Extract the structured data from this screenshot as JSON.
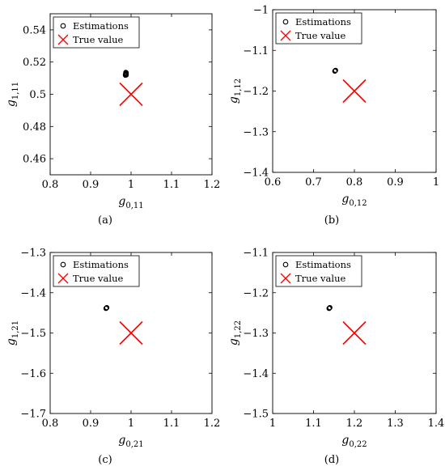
{
  "chart_data": [
    {
      "type": "scatter",
      "caption": "(a)",
      "xlabel": "g",
      "xlabel_sub": "0,11",
      "ylabel": "g",
      "ylabel_sub": "1,11",
      "xlim": [
        0.8,
        1.2
      ],
      "ylim": [
        0.45,
        0.55
      ],
      "xticks": [
        0.8,
        0.9,
        1.0,
        1.1,
        1.2
      ],
      "xtick_labels": [
        "0.8",
        "0.9",
        "1",
        "1.1",
        "1.2"
      ],
      "yticks": [
        0.46,
        0.48,
        0.5,
        0.52,
        0.54
      ],
      "ytick_labels": [
        "0.46",
        "0.48",
        "0.5",
        "0.52",
        "0.54"
      ],
      "legend": [
        "Estimations",
        "True value"
      ],
      "legend_position": "top-left",
      "grid": false,
      "series": [
        {
          "name": "Estimations",
          "marker": "circle-open",
          "color": "#000000",
          "x": [
            0.986,
            0.987,
            0.988,
            0.987,
            0.988,
            0.986,
            0.987,
            0.988
          ],
          "y": [
            0.5118,
            0.5122,
            0.5126,
            0.513,
            0.5134,
            0.5124,
            0.5136,
            0.512
          ]
        },
        {
          "name": "True value",
          "marker": "x",
          "color": "#ff0000",
          "x": [
            1.0
          ],
          "y": [
            0.5
          ]
        }
      ]
    },
    {
      "type": "scatter",
      "caption": "(b)",
      "xlabel": "g",
      "xlabel_sub": "0,12",
      "ylabel": "g",
      "ylabel_sub": "1,12",
      "xlim": [
        0.6,
        1.0
      ],
      "ylim": [
        -1.4,
        -1.0
      ],
      "xticks": [
        0.6,
        0.7,
        0.8,
        0.9,
        1.0
      ],
      "xtick_labels": [
        "0.6",
        "0.7",
        "0.8",
        "0.9",
        "1"
      ],
      "yticks": [
        -1.4,
        -1.3,
        -1.2,
        -1.1,
        -1.0
      ],
      "ytick_labels": [
        "−1.4",
        "−1.3",
        "−1.2",
        "−1.1",
        "−1"
      ],
      "legend": [
        "Estimations",
        "True value"
      ],
      "legend_position": "top-left",
      "grid": false,
      "series": [
        {
          "name": "Estimations",
          "marker": "circle-open",
          "color": "#000000",
          "x": [
            0.752,
            0.753,
            0.754
          ],
          "y": [
            -1.151,
            -1.15,
            -1.149
          ]
        },
        {
          "name": "True value",
          "marker": "x",
          "color": "#ff0000",
          "x": [
            0.8
          ],
          "y": [
            -1.2
          ]
        }
      ]
    },
    {
      "type": "scatter",
      "caption": "(c)",
      "xlabel": "g",
      "xlabel_sub": "0,21",
      "ylabel": "g",
      "ylabel_sub": "1,21",
      "xlim": [
        0.8,
        1.2
      ],
      "ylim": [
        -1.7,
        -1.3
      ],
      "xticks": [
        0.8,
        0.9,
        1.0,
        1.1,
        1.2
      ],
      "xtick_labels": [
        "0.8",
        "0.9",
        "1",
        "1.1",
        "1.2"
      ],
      "yticks": [
        -1.7,
        -1.6,
        -1.5,
        -1.4,
        -1.3
      ],
      "ytick_labels": [
        "−1.7",
        "−1.6",
        "−1.5",
        "−1.4",
        "−1.3"
      ],
      "legend": [
        "Estimations",
        "True value"
      ],
      "legend_position": "top-left",
      "grid": false,
      "series": [
        {
          "name": "Estimations",
          "marker": "circle-open",
          "color": "#000000",
          "x": [
            0.938,
            0.939,
            0.94
          ],
          "y": [
            -1.439,
            -1.438,
            -1.437
          ]
        },
        {
          "name": "True value",
          "marker": "x",
          "color": "#ff0000",
          "x": [
            1.0
          ],
          "y": [
            -1.5
          ]
        }
      ]
    },
    {
      "type": "scatter",
      "caption": "(d)",
      "xlabel": "g",
      "xlabel_sub": "0,22",
      "ylabel": "g",
      "ylabel_sub": "1,22",
      "xlim": [
        1.0,
        1.4
      ],
      "ylim": [
        -1.5,
        -1.1
      ],
      "xticks": [
        1.0,
        1.1,
        1.2,
        1.3,
        1.4
      ],
      "xtick_labels": [
        "1",
        "1.1",
        "1.2",
        "1.3",
        "1.4"
      ],
      "yticks": [
        -1.5,
        -1.4,
        -1.3,
        -1.2,
        -1.1
      ],
      "ytick_labels": [
        "−1.5",
        "−1.4",
        "−1.3",
        "−1.2",
        "−1.1"
      ],
      "legend": [
        "Estimations",
        "True value"
      ],
      "legend_position": "top-left",
      "grid": false,
      "series": [
        {
          "name": "Estimations",
          "marker": "circle-open",
          "color": "#000000",
          "x": [
            1.138,
            1.139,
            1.14
          ],
          "y": [
            -1.239,
            -1.238,
            -1.237
          ]
        },
        {
          "name": "True value",
          "marker": "x",
          "color": "#ff0000",
          "x": [
            1.2
          ],
          "y": [
            -1.3
          ]
        }
      ]
    }
  ]
}
